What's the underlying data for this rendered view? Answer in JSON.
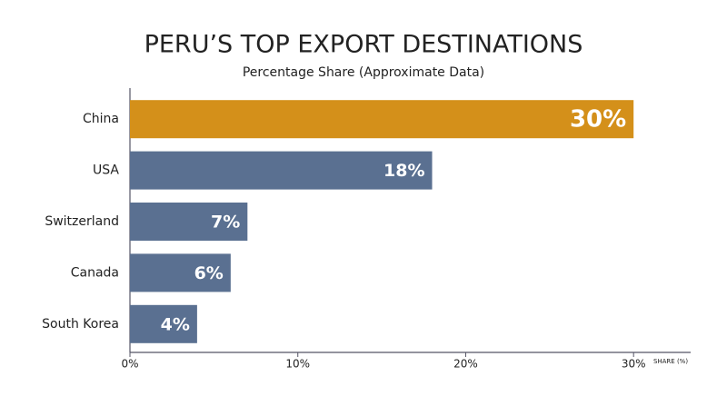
{
  "chart_data": {
    "type": "bar",
    "orientation": "horizontal",
    "title": "PERU’S TOP EXPORT DESTINATIONS",
    "subtitle": "Percentage Share (Approximate Data)",
    "x_label": "SHARE (%)",
    "categories": [
      "China",
      "USA",
      "Switzerland",
      "Canada",
      "South Korea"
    ],
    "values": [
      30,
      18,
      7,
      6,
      4
    ],
    "value_labels": [
      "30%",
      "18%",
      "7%",
      "6%",
      "4%"
    ],
    "colors": [
      "#d4901a",
      "#5a7091",
      "#5a7091",
      "#5a7091",
      "#5a7091"
    ],
    "xlim": [
      0,
      33.4
    ],
    "xticks": [
      {
        "value": 0,
        "label": "0%"
      },
      {
        "value": 10,
        "label": "10%"
      },
      {
        "value": 20,
        "label": "20%"
      },
      {
        "value": 30,
        "label": "30%"
      }
    ],
    "grid": false
  }
}
